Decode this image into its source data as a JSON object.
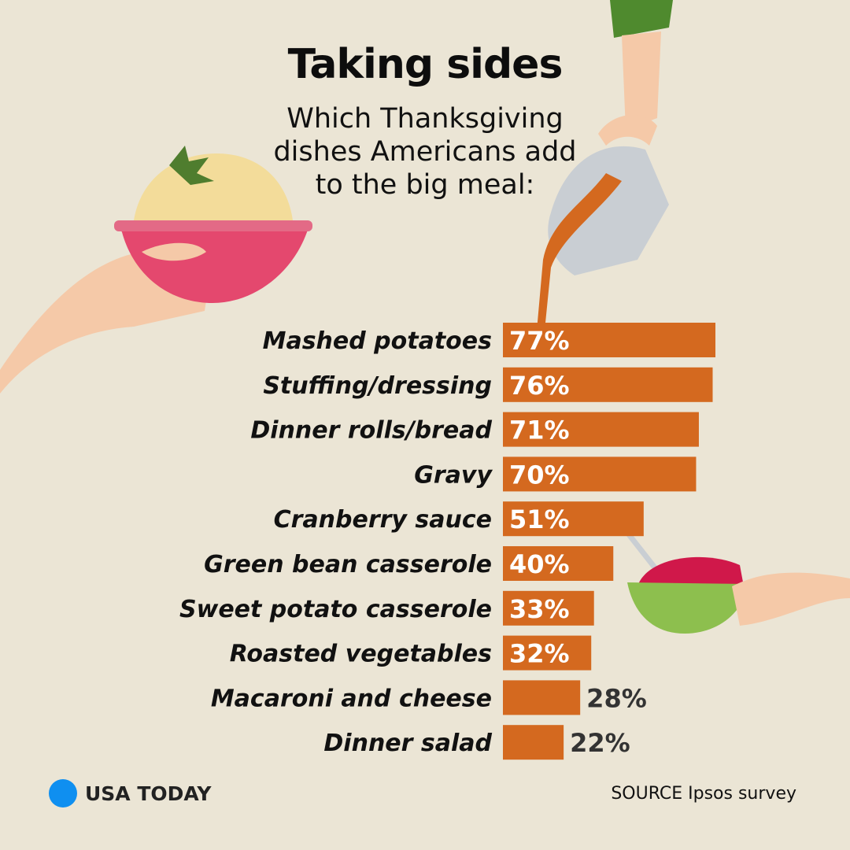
{
  "chart_data": {
    "type": "bar",
    "orientation": "horizontal",
    "title": "Taking sides",
    "subtitle": "Which Thanksgiving dishes Americans add to the big meal:",
    "categories": [
      "Mashed potatoes",
      "Stuffing/dressing",
      "Dinner rolls/bread",
      "Gravy",
      "Cranberry sauce",
      "Green bean casserole",
      "Sweet potato casserole",
      "Roasted vegetables",
      "Macaroni and cheese",
      "Dinner salad"
    ],
    "values": [
      77,
      76,
      71,
      70,
      51,
      40,
      33,
      32,
      28,
      22
    ],
    "value_labels": [
      "77%",
      "76%",
      "71%",
      "70%",
      "51%",
      "40%",
      "33%",
      "32%",
      "28%",
      "22%"
    ],
    "unit": "%",
    "grid": false,
    "colors": {
      "bar": "#d4691f",
      "background": "#ebe5d5",
      "value_label_inside": "#ffffff",
      "value_label_outside": "#333333"
    }
  },
  "brand": {
    "name": "USA TODAY",
    "color": "#0f8ff0"
  },
  "source": "SOURCE  Ipsos survey"
}
